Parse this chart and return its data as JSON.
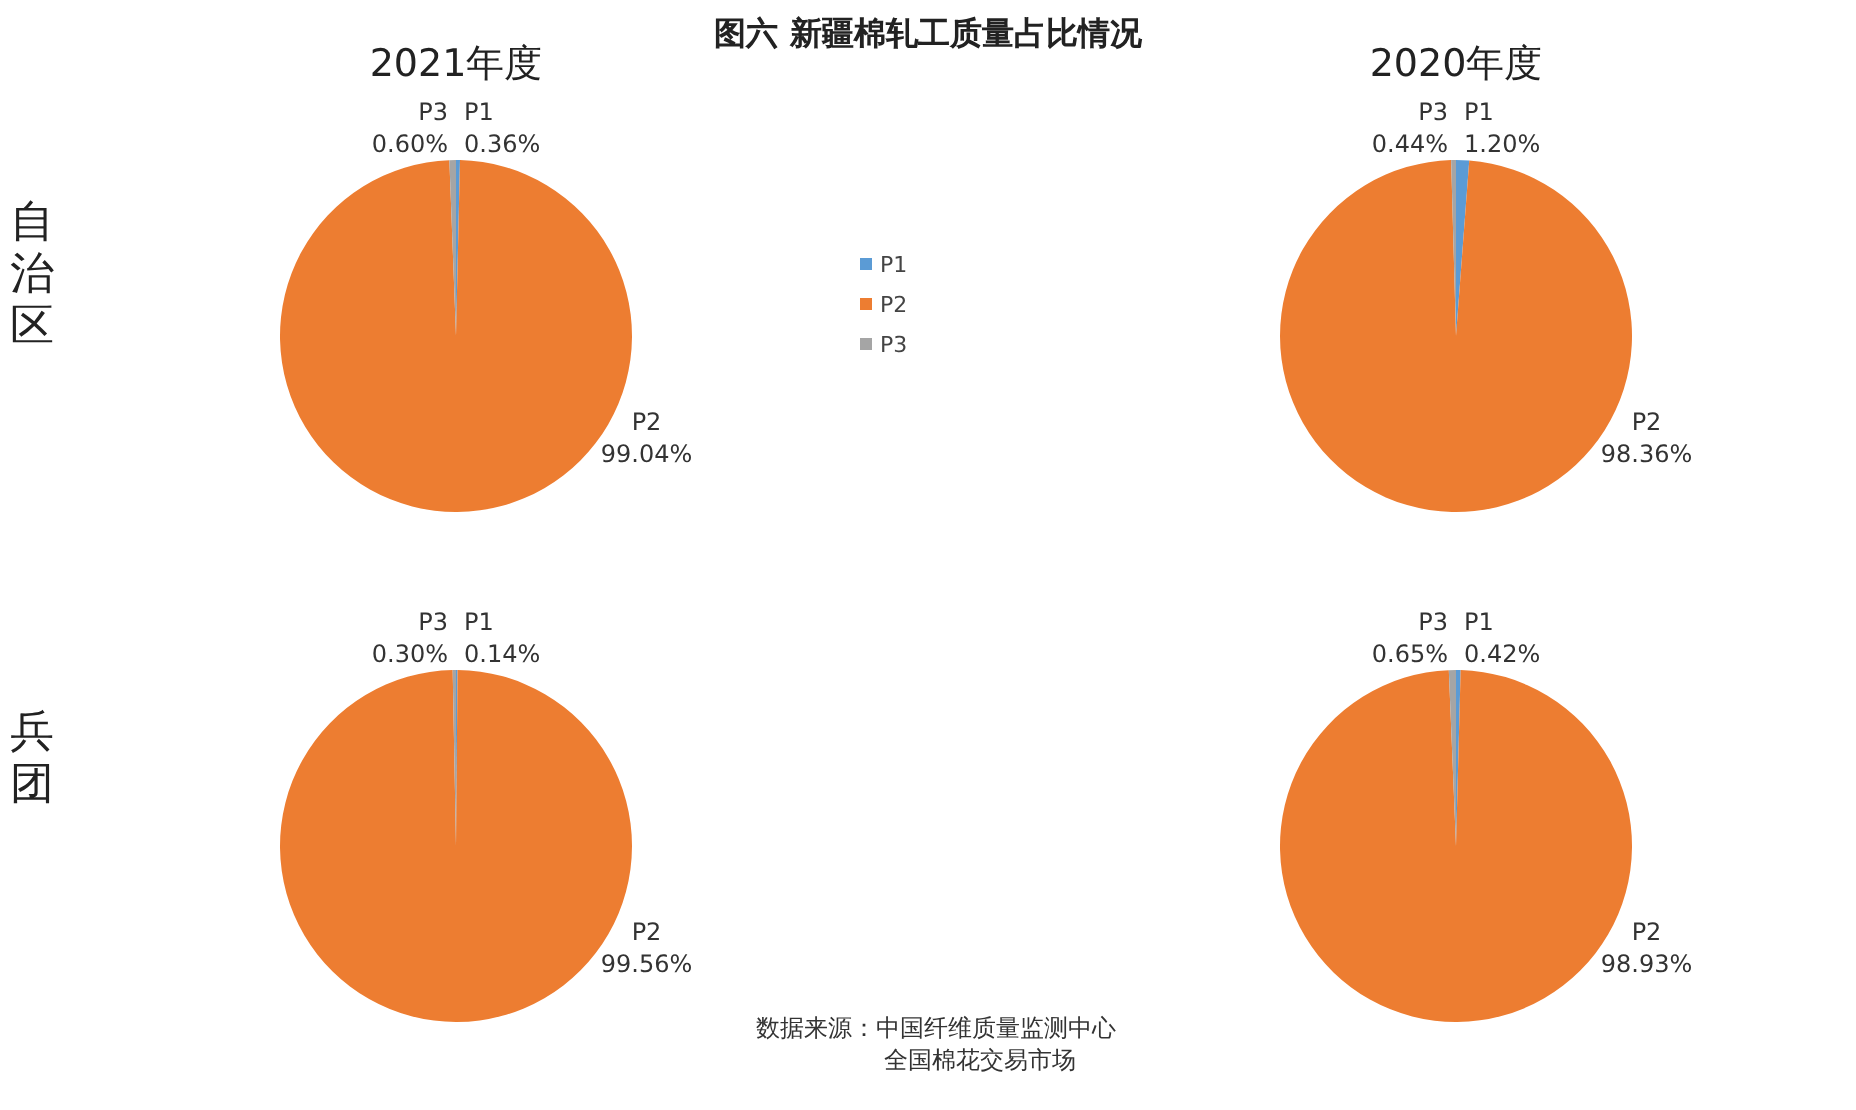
{
  "chart_data": [
    {
      "type": "pie",
      "title": "2021年度",
      "ylabel": "自治区",
      "categories": [
        "P1",
        "P2",
        "P3"
      ],
      "values": [
        0.36,
        99.04,
        0.6
      ],
      "value_labels": [
        "0.36%",
        "99.04%",
        "0.60%"
      ],
      "colors": [
        "#5b9bd5",
        "#ed7d31",
        "#a5a5a5"
      ],
      "legend": "right"
    },
    {
      "type": "pie",
      "title": "2020年度",
      "categories": [
        "P1",
        "P2",
        "P3"
      ],
      "values": [
        1.2,
        98.36,
        0.44
      ],
      "value_labels": [
        "1.20%",
        "98.36%",
        "0.44%"
      ],
      "colors": [
        "#5b9bd5",
        "#ed7d31",
        "#a5a5a5"
      ]
    },
    {
      "type": "pie",
      "ylabel": "兵团",
      "categories": [
        "P1",
        "P2",
        "P3"
      ],
      "values": [
        0.14,
        99.56,
        0.3
      ],
      "value_labels": [
        "0.14%",
        "99.56%",
        "0.30%"
      ],
      "colors": [
        "#5b9bd5",
        "#ed7d31",
        "#a5a5a5"
      ]
    },
    {
      "type": "pie",
      "categories": [
        "P1",
        "P2",
        "P3"
      ],
      "values": [
        0.42,
        98.93,
        0.65
      ],
      "value_labels": [
        "0.42%",
        "98.93%",
        "0.65%"
      ],
      "colors": [
        "#5b9bd5",
        "#ed7d31",
        "#a5a5a5"
      ]
    },
    {
      "type": "other",
      "title": "图六 新疆棉轧工质量占比情况",
      "annotations": [
        "数据来源：中国纤维质量监测中心",
        "全国棉花交易市场"
      ]
    }
  ]
}
